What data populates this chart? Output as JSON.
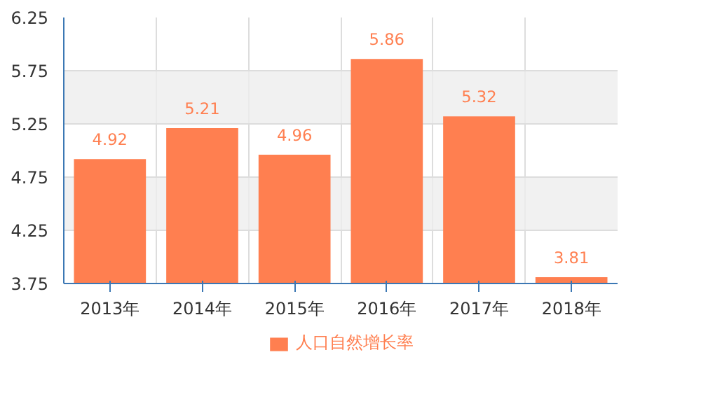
{
  "chart_data": {
    "type": "bar",
    "categories": [
      "2013年",
      "2014年",
      "2015年",
      "2016年",
      "2017年",
      "2018年"
    ],
    "series": [
      {
        "name": "人口自然增长率",
        "color": "#ff7f50",
        "values": [
          4.92,
          5.21,
          4.96,
          5.86,
          5.32,
          3.81
        ]
      }
    ],
    "ylim": [
      3.75,
      6.25
    ],
    "yticks": [
      3.75,
      4.25,
      4.75,
      5.25,
      5.75,
      6.25
    ],
    "grid": true,
    "legend": "bottom",
    "data_labels": true
  }
}
